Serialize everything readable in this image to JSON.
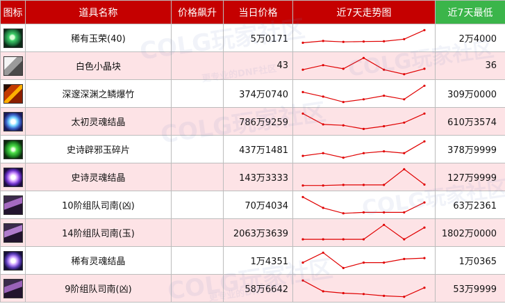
{
  "header": {
    "icon": "图标",
    "name": "道具名称",
    "rise": "价格飙升",
    "price": "当日价格",
    "trend": "近7天走势图",
    "low": "近7天最低"
  },
  "colors": {
    "header_red": "#c50000",
    "header_green": "#3bb54a",
    "row_alt": "#fde3e6",
    "trend_line": "#e00000"
  },
  "rows": [
    {
      "icon": "green-orb-icon",
      "name": "稀有玉荣(40)",
      "rise": "",
      "price": "5万0171",
      "low": "2万4000",
      "trend": [
        0.25,
        0.35,
        0.3,
        0.32,
        0.33,
        0.45,
        0.95
      ]
    },
    {
      "icon": "white-crystal-icon",
      "name": "白色小晶块",
      "rise": "",
      "price": "43",
      "low": "36",
      "trend": [
        0.3,
        0.55,
        0.35,
        0.95,
        0.3,
        0.05,
        0.35
      ]
    },
    {
      "icon": "dragon-scale-firecracker-icon",
      "name": "深邃深渊之鳞爆竹",
      "rise": "",
      "price": "374万0740",
      "low": "309万0000",
      "trend": [
        0.6,
        0.35,
        0.05,
        0.2,
        0.4,
        0.2,
        0.95
      ]
    },
    {
      "icon": "taichu-soul-crystal-icon",
      "name": "太初灵魂结晶",
      "rise": "",
      "price": "786万9259",
      "low": "610万3574",
      "trend": [
        0.95,
        0.35,
        0.3,
        0.1,
        0.25,
        0.45,
        0.95
      ]
    },
    {
      "icon": "epic-jade-shard-icon",
      "name": "史诗辟邪玉碎片",
      "rise": "",
      "price": "437万1481",
      "low": "378万9999",
      "trend": [
        0.15,
        0.3,
        0.05,
        0.3,
        0.4,
        0.3,
        0.95
      ]
    },
    {
      "icon": "epic-soul-crystal-icon",
      "name": "史诗灵魂结晶",
      "rise": "",
      "price": "143万3333",
      "low": "127万9999",
      "trend": [
        0.05,
        0.05,
        0.08,
        0.08,
        0.08,
        0.95,
        0.1
      ]
    },
    {
      "icon": "sinan-ticket-10-icon",
      "name": "10阶组队司南(凶)",
      "rise": "",
      "price": "70万4034",
      "low": "63万2361",
      "trend": [
        0.95,
        0.35,
        0.05,
        0.1,
        0.1,
        0.1,
        0.65
      ]
    },
    {
      "icon": "sinan-ticket-14-icon",
      "name": "14阶组队司南(玉)",
      "rise": "",
      "price": "2063万3639",
      "low": "1802万0000",
      "trend": [
        0.15,
        0.15,
        0.15,
        0.15,
        0.95,
        0.15,
        0.8
      ]
    },
    {
      "icon": "rare-soul-crystal-icon",
      "name": "稀有灵魂结晶",
      "rise": "",
      "price": "1万4351",
      "low": "1万0365",
      "trend": [
        0.4,
        0.95,
        0.1,
        0.4,
        0.4,
        0.6,
        0.65
      ]
    },
    {
      "icon": "sinan-ticket-9-icon",
      "name": "9阶组队司南(凶)",
      "rise": "",
      "price": "58万6642",
      "low": "53万9999",
      "trend": [
        0.95,
        0.35,
        0.25,
        0.2,
        0.1,
        0.05,
        0.55
      ]
    }
  ],
  "watermark": {
    "logo": "COLG玩家社区",
    "slogan": "更专业的DNF社区"
  }
}
